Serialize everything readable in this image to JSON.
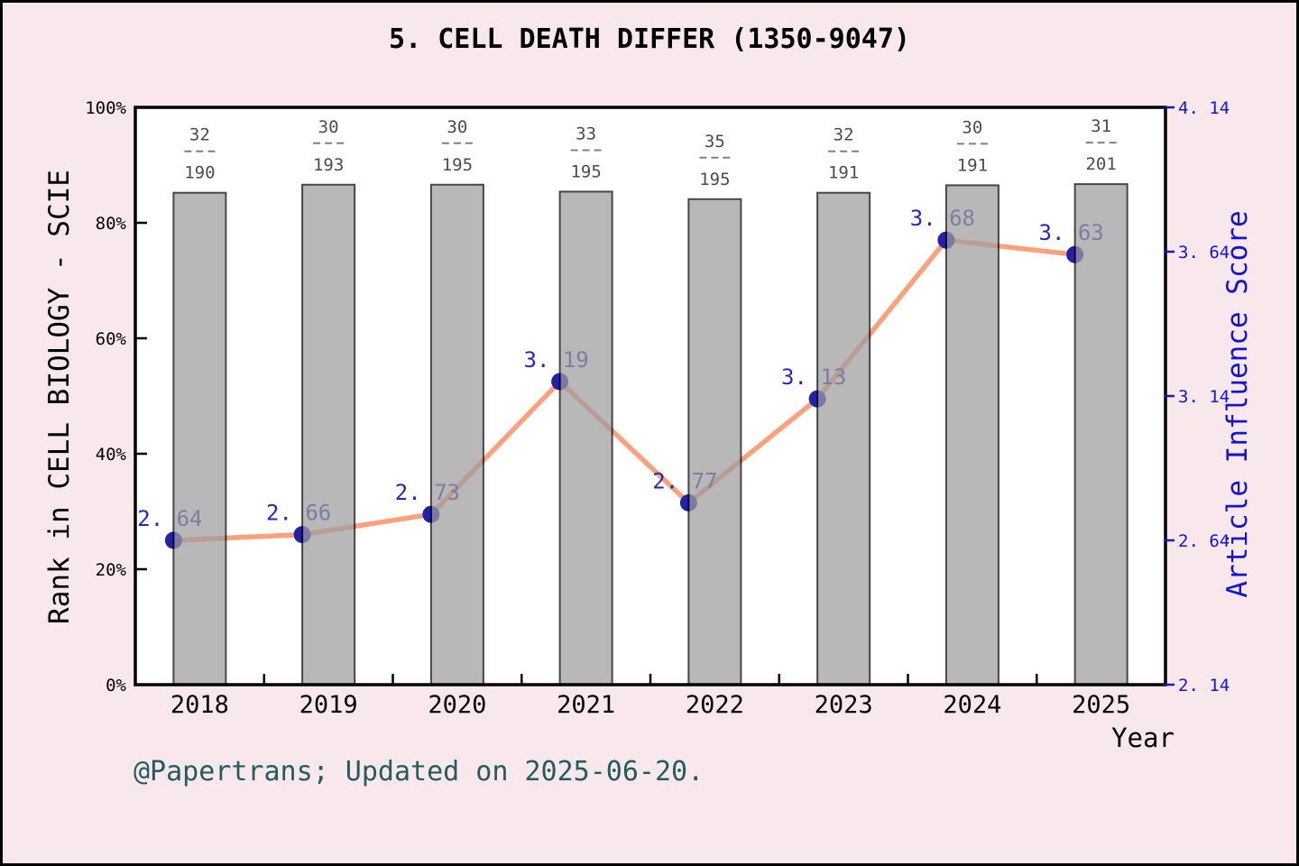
{
  "page": {
    "background_color": "#F8E8EC",
    "footer": "@Papertrans; Updated on 2025-06-20.",
    "footer_color": "#245B5F"
  },
  "chart_data": {
    "type": "bar",
    "title": "5. CELL DEATH DIFFER (1350-9047)",
    "xlabel": "Year",
    "categories": [
      "2018",
      "2019",
      "2020",
      "2021",
      "2022",
      "2023",
      "2024",
      "2025"
    ],
    "left_axis": {
      "label": "Rank in CELL BIOLOGY - SCIE",
      "tick_labels": [
        "0%",
        "20%",
        "40%",
        "60%",
        "80%",
        "100%"
      ],
      "tick_values": [
        0,
        20,
        40,
        60,
        80,
        100
      ],
      "range": [
        0,
        100
      ]
    },
    "right_axis": {
      "label": "Article Influence Score",
      "tick_labels": [
        "2. 14",
        "2. 64",
        "3. 14",
        "3. 64",
        "4. 14"
      ],
      "tick_values": [
        2.14,
        2.64,
        3.14,
        3.64,
        4.14
      ],
      "range": [
        2.14,
        4.14
      ]
    },
    "series": [
      {
        "name": "rank-percentile-bars",
        "type": "bar",
        "axis": "left",
        "values": [
          85.2,
          86.6,
          86.6,
          85.4,
          84.1,
          85.2,
          86.5,
          86.7
        ],
        "rank": [
          32,
          30,
          30,
          33,
          35,
          32,
          30,
          31
        ],
        "total": [
          190,
          193,
          195,
          195,
          195,
          191,
          191,
          201
        ],
        "fraction_labels": [
          "32/190",
          "30/193",
          "30/195",
          "33/195",
          "35/195",
          "32/191",
          "30/191",
          "31/201"
        ]
      },
      {
        "name": "article-influence-score",
        "type": "line",
        "axis": "right",
        "values": [
          2.64,
          2.66,
          2.73,
          3.19,
          2.77,
          3.13,
          3.68,
          3.63
        ],
        "point_labels": [
          "2. 64",
          "2. 66",
          "2. 73",
          "3. 19",
          "2. 77",
          "3. 13",
          "3. 68",
          "3. 63"
        ]
      }
    ],
    "colors": {
      "plot_background": "#FFFFFF",
      "spine": "#000000",
      "bar_fill": "#9E9E9E",
      "bar_opacity": 0.72,
      "bar_edge": "#000000",
      "line": "#FCA17C",
      "dot": "#2121AC",
      "point_label": "#2727C0",
      "right_axis_text": "#1414D2",
      "left_axis_text": "#000000",
      "fraction_text": "#4D4D4D",
      "fraction_dash": "#808080"
    },
    "legend": "none",
    "grid": "off"
  }
}
